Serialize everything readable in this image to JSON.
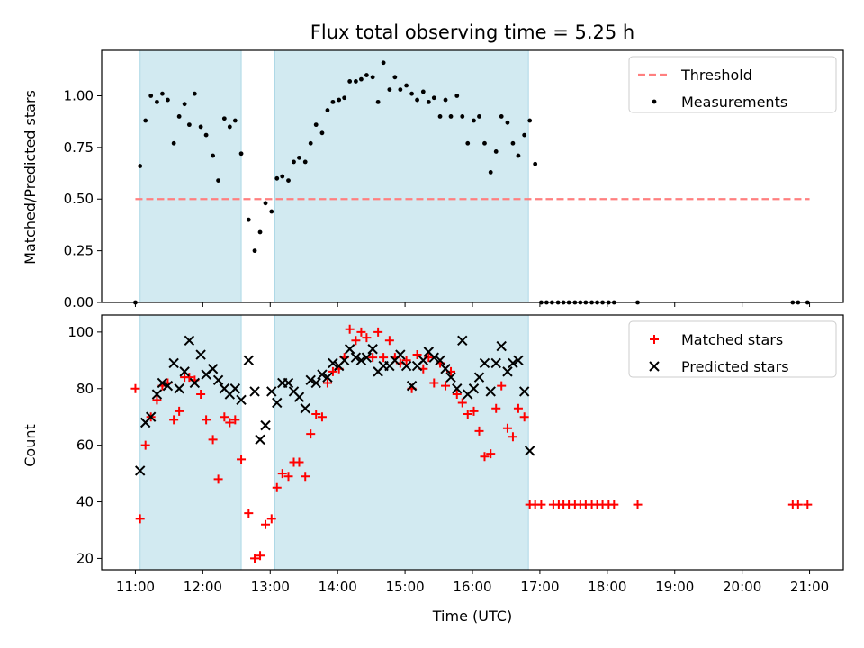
{
  "figure": {
    "title": "Flux total observing time = 5.25 h",
    "xlabel": "Time (UTC)"
  },
  "colors": {
    "shade": "#add8e6",
    "threshold": "#ff7f7f",
    "measurement": "#000000",
    "matched": "#ff0000",
    "predicted": "#000000"
  },
  "chart_data": [
    {
      "type": "scatter",
      "ylabel": "Matched/Predicted stars",
      "xlim": [
        10.5,
        21.5
      ],
      "ylim": [
        0,
        1.22
      ],
      "xticks": [
        "11:00",
        "12:00",
        "13:00",
        "14:00",
        "15:00",
        "16:00",
        "17:00",
        "18:00",
        "19:00",
        "20:00",
        "21:00"
      ],
      "yticks": [
        "0.00",
        "0.25",
        "0.50",
        "0.75",
        "1.00"
      ],
      "shaded_intervals": [
        [
          11.07,
          12.57
        ],
        [
          13.07,
          16.83
        ]
      ],
      "threshold": {
        "name": "Threshold",
        "value": 0.5,
        "x": [
          11.0,
          21.0
        ]
      },
      "legend": [
        "Threshold",
        "Measurements"
      ],
      "legend_position": "top-right",
      "series": [
        {
          "name": "Measurements",
          "points": [
            [
              11.0,
              0.0
            ],
            [
              11.07,
              0.66
            ],
            [
              11.15,
              0.88
            ],
            [
              11.23,
              1.0
            ],
            [
              11.32,
              0.97
            ],
            [
              11.4,
              1.01
            ],
            [
              11.48,
              0.98
            ],
            [
              11.57,
              0.77
            ],
            [
              11.65,
              0.9
            ],
            [
              11.73,
              0.96
            ],
            [
              11.8,
              0.86
            ],
            [
              11.88,
              1.01
            ],
            [
              11.97,
              0.85
            ],
            [
              12.05,
              0.81
            ],
            [
              12.15,
              0.71
            ],
            [
              12.23,
              0.59
            ],
            [
              12.32,
              0.89
            ],
            [
              12.4,
              0.85
            ],
            [
              12.48,
              0.88
            ],
            [
              12.57,
              0.72
            ],
            [
              12.68,
              0.4
            ],
            [
              12.77,
              0.25
            ],
            [
              12.85,
              0.34
            ],
            [
              12.93,
              0.48
            ],
            [
              13.02,
              0.44
            ],
            [
              13.1,
              0.6
            ],
            [
              13.18,
              0.61
            ],
            [
              13.27,
              0.59
            ],
            [
              13.35,
              0.68
            ],
            [
              13.43,
              0.7
            ],
            [
              13.52,
              0.68
            ],
            [
              13.6,
              0.77
            ],
            [
              13.68,
              0.86
            ],
            [
              13.77,
              0.82
            ],
            [
              13.85,
              0.93
            ],
            [
              13.93,
              0.97
            ],
            [
              14.02,
              0.98
            ],
            [
              14.1,
              0.99
            ],
            [
              14.18,
              1.07
            ],
            [
              14.27,
              1.07
            ],
            [
              14.35,
              1.08
            ],
            [
              14.43,
              1.1
            ],
            [
              14.52,
              1.09
            ],
            [
              14.6,
              0.97
            ],
            [
              14.68,
              1.16
            ],
            [
              14.77,
              1.03
            ],
            [
              14.85,
              1.09
            ],
            [
              14.93,
              1.03
            ],
            [
              15.02,
              1.05
            ],
            [
              15.1,
              1.01
            ],
            [
              15.18,
              0.98
            ],
            [
              15.27,
              1.02
            ],
            [
              15.35,
              0.97
            ],
            [
              15.43,
              0.99
            ],
            [
              15.52,
              0.9
            ],
            [
              15.6,
              0.98
            ],
            [
              15.68,
              0.9
            ],
            [
              15.77,
              1.0
            ],
            [
              15.85,
              0.9
            ],
            [
              15.93,
              0.77
            ],
            [
              16.02,
              0.88
            ],
            [
              16.1,
              0.9
            ],
            [
              16.18,
              0.77
            ],
            [
              16.27,
              0.63
            ],
            [
              16.35,
              0.73
            ],
            [
              16.43,
              0.9
            ],
            [
              16.52,
              0.87
            ],
            [
              16.6,
              0.77
            ],
            [
              16.68,
              0.71
            ],
            [
              16.77,
              0.81
            ],
            [
              16.85,
              0.88
            ],
            [
              16.93,
              0.67
            ],
            [
              17.02,
              0.0
            ],
            [
              17.1,
              0.0
            ],
            [
              17.18,
              0.0
            ],
            [
              17.27,
              0.0
            ],
            [
              17.35,
              0.0
            ],
            [
              17.43,
              0.0
            ],
            [
              17.52,
              0.0
            ],
            [
              17.6,
              0.0
            ],
            [
              17.68,
              0.0
            ],
            [
              17.77,
              0.0
            ],
            [
              17.85,
              0.0
            ],
            [
              17.93,
              0.0
            ],
            [
              18.02,
              0.0
            ],
            [
              18.1,
              0.0
            ],
            [
              18.45,
              0.0
            ],
            [
              20.75,
              0.0
            ],
            [
              20.83,
              0.0
            ],
            [
              20.97,
              0.0
            ]
          ]
        }
      ]
    },
    {
      "type": "scatter",
      "ylabel": "Count",
      "xlim": [
        10.5,
        21.5
      ],
      "ylim": [
        16,
        106
      ],
      "xticks": [
        "11:00",
        "12:00",
        "13:00",
        "14:00",
        "15:00",
        "16:00",
        "17:00",
        "18:00",
        "19:00",
        "20:00",
        "21:00"
      ],
      "yticks": [
        "20",
        "40",
        "60",
        "80",
        "100"
      ],
      "shaded_intervals": [
        [
          11.07,
          12.57
        ],
        [
          13.07,
          16.83
        ]
      ],
      "legend": [
        "Matched stars",
        "Predicted stars"
      ],
      "legend_position": "top-right",
      "series": [
        {
          "name": "Matched stars",
          "points": [
            [
              11.0,
              80
            ],
            [
              11.07,
              34
            ],
            [
              11.15,
              60
            ],
            [
              11.23,
              70
            ],
            [
              11.32,
              76
            ],
            [
              11.4,
              81
            ],
            [
              11.48,
              82
            ],
            [
              11.57,
              69
            ],
            [
              11.65,
              72
            ],
            [
              11.73,
              84
            ],
            [
              11.8,
              84
            ],
            [
              11.88,
              83
            ],
            [
              11.97,
              78
            ],
            [
              12.05,
              69
            ],
            [
              12.15,
              62
            ],
            [
              12.23,
              48
            ],
            [
              12.32,
              70
            ],
            [
              12.4,
              68
            ],
            [
              12.48,
              69
            ],
            [
              12.57,
              55
            ],
            [
              12.68,
              36
            ],
            [
              12.77,
              20
            ],
            [
              12.85,
              21
            ],
            [
              12.93,
              32
            ],
            [
              13.02,
              34
            ],
            [
              13.1,
              45
            ],
            [
              13.18,
              50
            ],
            [
              13.27,
              49
            ],
            [
              13.35,
              54
            ],
            [
              13.43,
              54
            ],
            [
              13.52,
              49
            ],
            [
              13.6,
              64
            ],
            [
              13.68,
              71
            ],
            [
              13.77,
              70
            ],
            [
              13.85,
              82
            ],
            [
              13.93,
              86
            ],
            [
              14.02,
              87
            ],
            [
              14.1,
              91
            ],
            [
              14.18,
              101
            ],
            [
              14.27,
              97
            ],
            [
              14.35,
              100
            ],
            [
              14.43,
              98
            ],
            [
              14.52,
              91
            ],
            [
              14.6,
              100
            ],
            [
              14.68,
              91
            ],
            [
              14.77,
              97
            ],
            [
              14.85,
              91
            ],
            [
              14.93,
              89
            ],
            [
              15.02,
              90
            ],
            [
              15.1,
              80
            ],
            [
              15.18,
              92
            ],
            [
              15.27,
              87
            ],
            [
              15.35,
              91
            ],
            [
              15.43,
              82
            ],
            [
              15.52,
              89
            ],
            [
              15.6,
              81
            ],
            [
              15.68,
              86
            ],
            [
              15.77,
              78
            ],
            [
              15.85,
              75
            ],
            [
              15.93,
              71
            ],
            [
              16.02,
              72
            ],
            [
              16.1,
              65
            ],
            [
              16.18,
              56
            ],
            [
              16.27,
              57
            ],
            [
              16.35,
              73
            ],
            [
              16.43,
              81
            ],
            [
              16.52,
              66
            ],
            [
              16.6,
              63
            ],
            [
              16.68,
              73
            ],
            [
              16.77,
              70
            ],
            [
              16.85,
              39
            ],
            [
              16.93,
              39
            ],
            [
              17.02,
              39
            ],
            [
              17.2,
              39
            ],
            [
              17.28,
              39
            ],
            [
              17.35,
              39
            ],
            [
              17.43,
              39
            ],
            [
              17.52,
              39
            ],
            [
              17.6,
              39
            ],
            [
              17.68,
              39
            ],
            [
              17.77,
              39
            ],
            [
              17.85,
              39
            ],
            [
              17.93,
              39
            ],
            [
              18.02,
              39
            ],
            [
              18.1,
              39
            ],
            [
              18.45,
              39
            ],
            [
              20.75,
              39
            ],
            [
              20.83,
              39
            ],
            [
              20.97,
              39
            ]
          ]
        },
        {
          "name": "Predicted stars",
          "points": [
            [
              11.07,
              51
            ],
            [
              11.15,
              68
            ],
            [
              11.23,
              70
            ],
            [
              11.32,
              78
            ],
            [
              11.4,
              82
            ],
            [
              11.48,
              81
            ],
            [
              11.57,
              89
            ],
            [
              11.65,
              80
            ],
            [
              11.73,
              86
            ],
            [
              11.8,
              97
            ],
            [
              11.88,
              82
            ],
            [
              11.97,
              92
            ],
            [
              12.05,
              85
            ],
            [
              12.15,
              87
            ],
            [
              12.23,
              83
            ],
            [
              12.32,
              80
            ],
            [
              12.4,
              78
            ],
            [
              12.48,
              80
            ],
            [
              12.57,
              76
            ],
            [
              12.68,
              90
            ],
            [
              12.77,
              79
            ],
            [
              12.85,
              62
            ],
            [
              12.93,
              67
            ],
            [
              13.02,
              79
            ],
            [
              13.1,
              75
            ],
            [
              13.18,
              82
            ],
            [
              13.27,
              82
            ],
            [
              13.35,
              79
            ],
            [
              13.43,
              77
            ],
            [
              13.52,
              73
            ],
            [
              13.6,
              83
            ],
            [
              13.68,
              82
            ],
            [
              13.77,
              85
            ],
            [
              13.85,
              84
            ],
            [
              13.93,
              89
            ],
            [
              14.02,
              88
            ],
            [
              14.1,
              90
            ],
            [
              14.18,
              94
            ],
            [
              14.27,
              91
            ],
            [
              14.35,
              90
            ],
            [
              14.43,
              91
            ],
            [
              14.52,
              94
            ],
            [
              14.6,
              86
            ],
            [
              14.68,
              88
            ],
            [
              14.77,
              88
            ],
            [
              14.85,
              90
            ],
            [
              14.93,
              92
            ],
            [
              15.02,
              88
            ],
            [
              15.1,
              81
            ],
            [
              15.18,
              88
            ],
            [
              15.27,
              90
            ],
            [
              15.35,
              93
            ],
            [
              15.43,
              91
            ],
            [
              15.52,
              90
            ],
            [
              15.6,
              87
            ],
            [
              15.68,
              84
            ],
            [
              15.77,
              80
            ],
            [
              15.85,
              97
            ],
            [
              15.93,
              78
            ],
            [
              16.02,
              80
            ],
            [
              16.1,
              84
            ],
            [
              16.18,
              89
            ],
            [
              16.27,
              79
            ],
            [
              16.35,
              89
            ],
            [
              16.43,
              95
            ],
            [
              16.52,
              86
            ],
            [
              16.6,
              89
            ],
            [
              16.68,
              90
            ],
            [
              16.77,
              79
            ],
            [
              16.85,
              58
            ]
          ]
        }
      ]
    }
  ]
}
